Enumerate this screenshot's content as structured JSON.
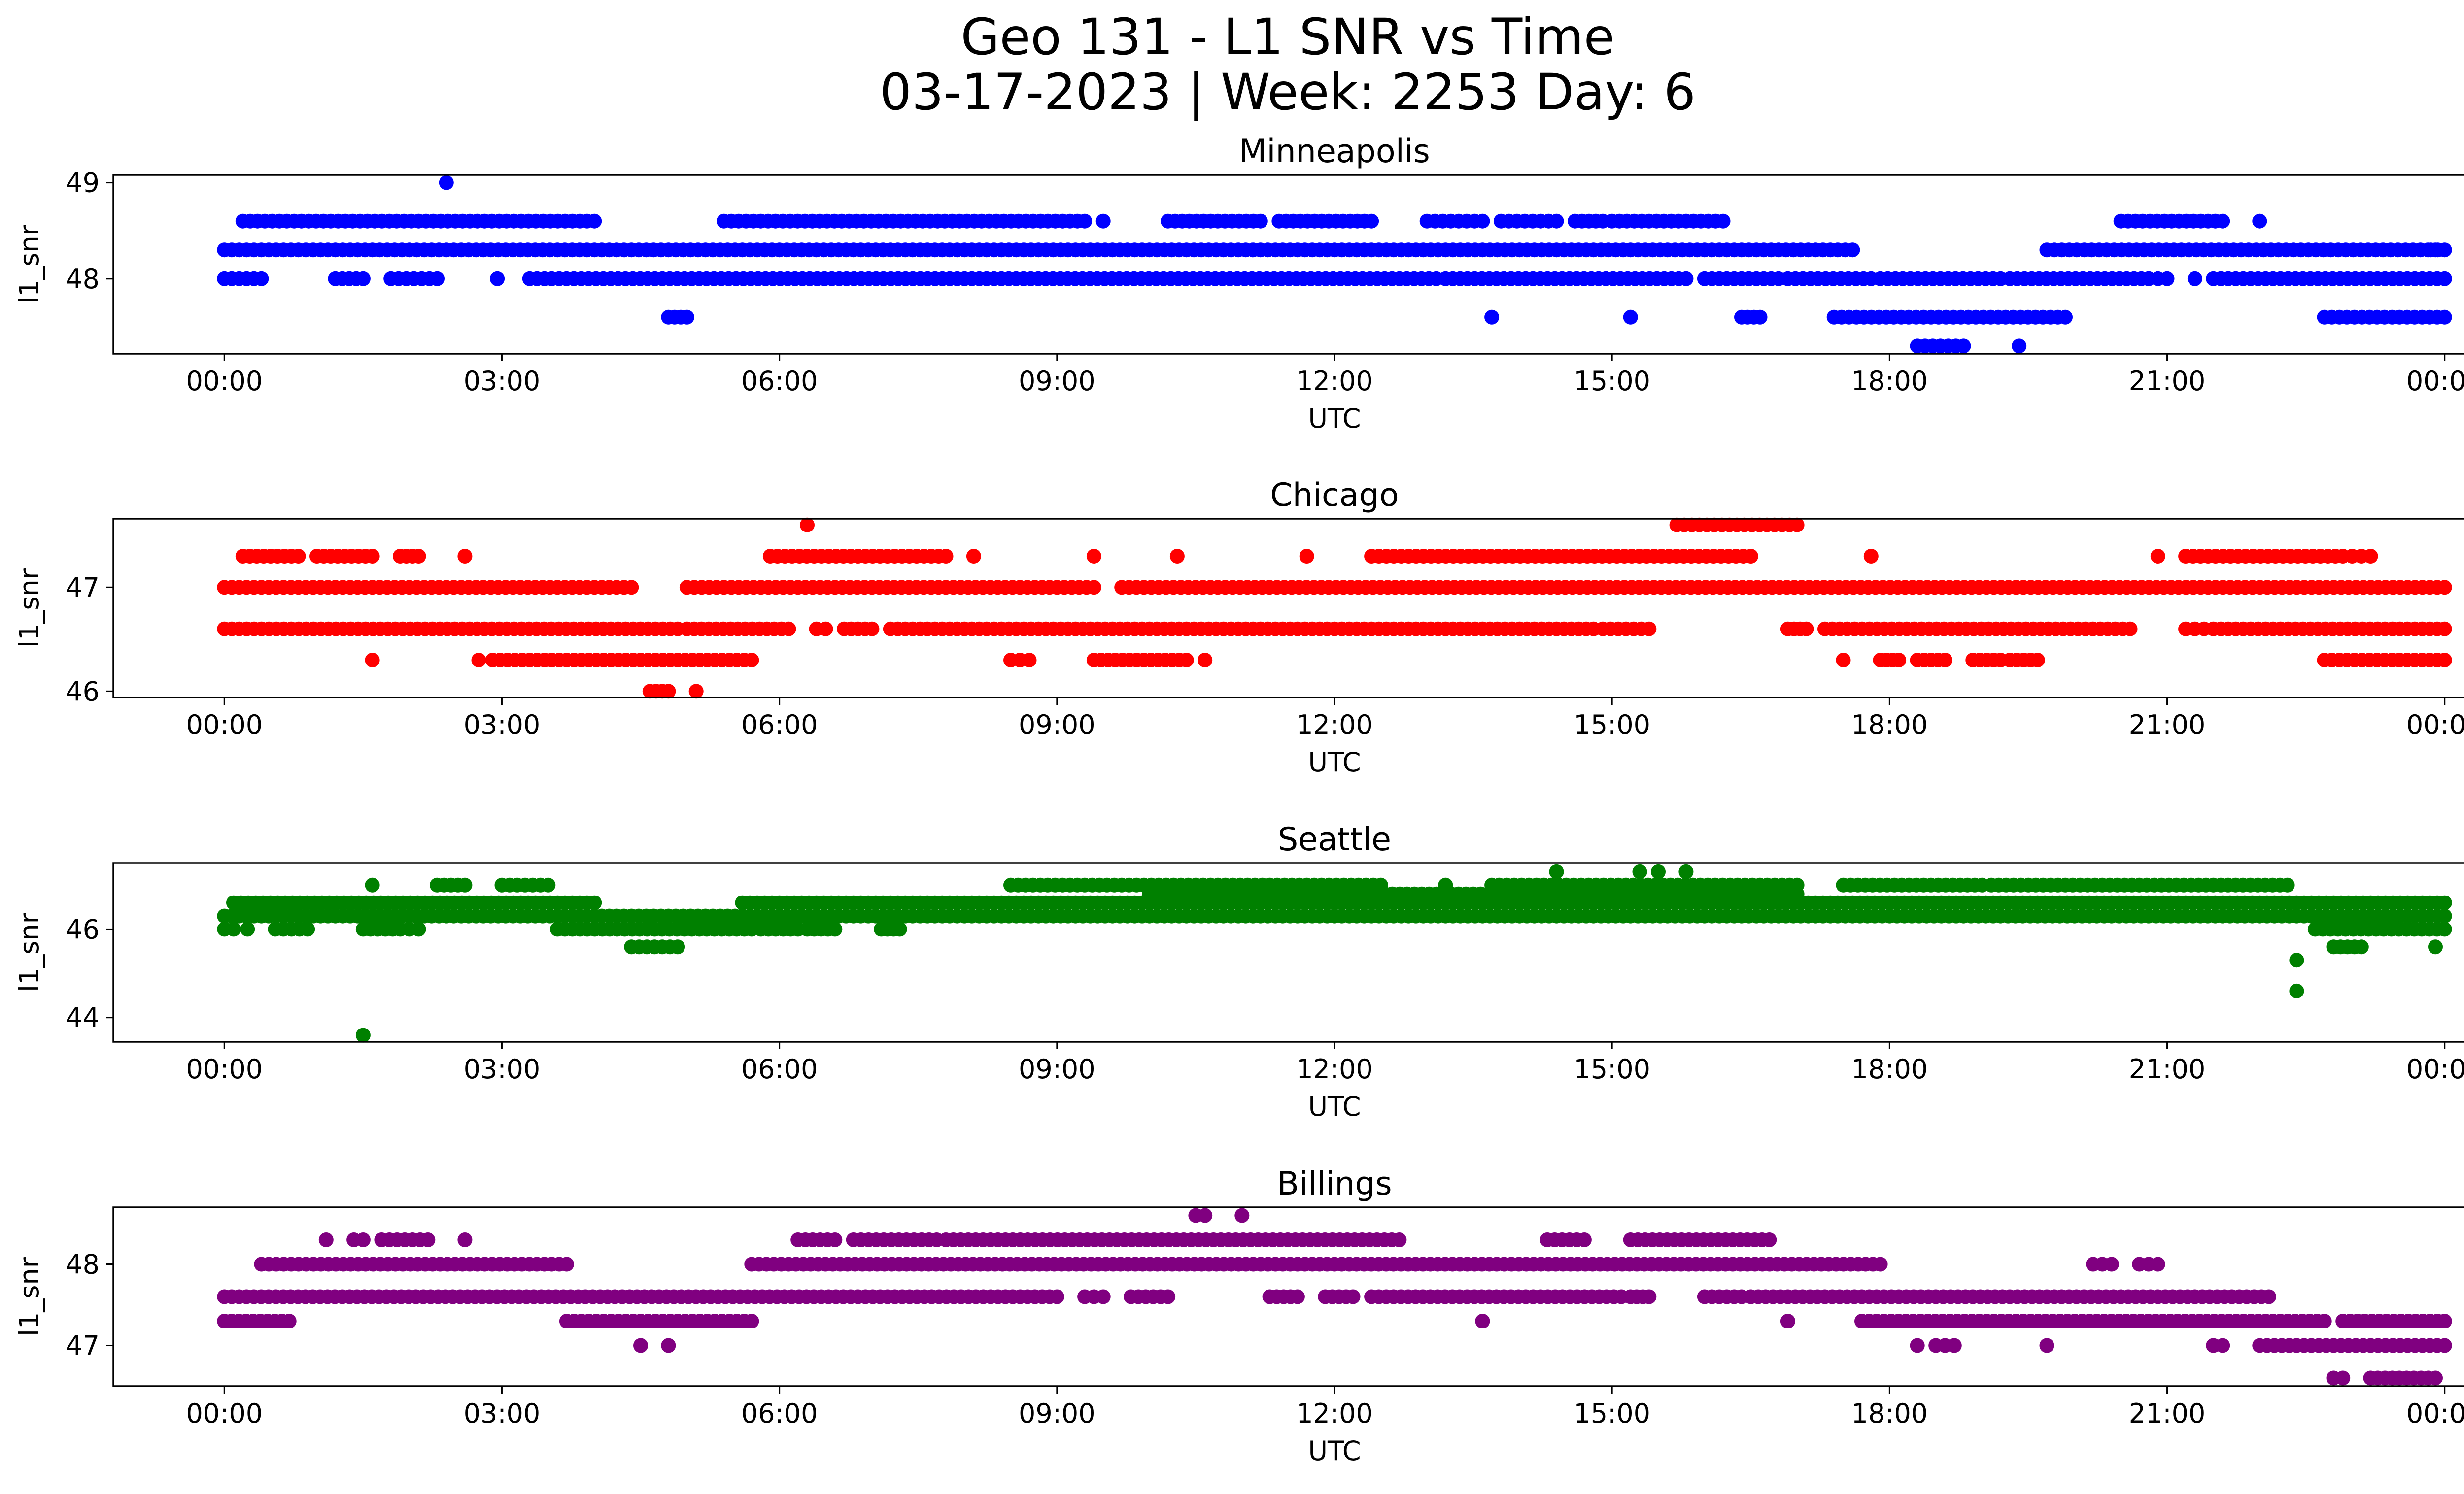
{
  "figure": {
    "title_line1": "Geo 131 - L1 SNR vs Time",
    "title_line2": "03-17-2023 | Week: 2253 Day: 6"
  },
  "chart_data": [
    {
      "type": "scatter",
      "title": "Minneapolis",
      "xlabel": "UTC",
      "ylabel": "l1_snr",
      "color": "#0000ff",
      "xticks": [
        "00:00",
        "03:00",
        "06:00",
        "09:00",
        "12:00",
        "15:00",
        "18:00",
        "21:00",
        "00:00"
      ],
      "yticks": [
        48,
        49
      ],
      "xlim": [
        -1.2,
        25.2
      ],
      "ylim": [
        47.22,
        49.08
      ],
      "levels": [
        {
          "y": 48.3,
          "runs": [
            [
              0,
              17.6
            ],
            [
              19.7,
              23.9
            ],
            [
              23.85,
              24.0
            ]
          ]
        },
        {
          "y": 48.0,
          "runs": [
            [
              0,
              0.4
            ],
            [
              1.2,
              1.5
            ],
            [
              1.8,
              2.3
            ],
            [
              2.95,
              2.95
            ],
            [
              3.3,
              13.1
            ],
            [
              13.2,
              15.8
            ],
            [
              16.0,
              16.8
            ],
            [
              16.9,
              17.8
            ],
            [
              17.9,
              19.2
            ],
            [
              19.3,
              20.8
            ],
            [
              20.8,
              21.0
            ],
            [
              21.3,
              21.3
            ],
            [
              21.5,
              24.0
            ]
          ]
        },
        {
          "y": 48.6,
          "runs": [
            [
              0.2,
              4.0
            ],
            [
              5.4,
              9.3
            ],
            [
              9.5,
              9.5
            ],
            [
              10.2,
              11.2
            ],
            [
              11.4,
              12.4
            ],
            [
              13.0,
              13.6
            ],
            [
              13.8,
              14.4
            ],
            [
              14.6,
              14.9
            ],
            [
              15.0,
              16.2
            ],
            [
              20.5,
              21.6
            ],
            [
              22.0,
              22.0
            ]
          ]
        },
        {
          "y": 47.6,
          "runs": [
            [
              4.8,
              5.0
            ],
            [
              13.7,
              13.7
            ],
            [
              15.2,
              15.2
            ],
            [
              16.4,
              16.6
            ],
            [
              17.4,
              19.9
            ],
            [
              22.7,
              24.0
            ]
          ]
        },
        {
          "y": 47.3,
          "runs": [
            [
              18.3,
              18.8
            ],
            [
              19.4,
              19.4
            ]
          ]
        }
      ],
      "outliers": [
        {
          "x": 2.4,
          "y": 49.0
        }
      ]
    },
    {
      "type": "scatter",
      "title": "Chicago",
      "xlabel": "UTC",
      "ylabel": "l1_snr",
      "color": "#ff0000",
      "xticks": [
        "00:00",
        "03:00",
        "06:00",
        "09:00",
        "12:00",
        "15:00",
        "18:00",
        "21:00",
        "00:00"
      ],
      "yticks": [
        46,
        47
      ],
      "xlim": [
        -1.2,
        25.2
      ],
      "ylim": [
        45.94,
        47.66
      ],
      "levels": [
        {
          "y": 47.0,
          "runs": [
            [
              0,
              4.4
            ],
            [
              5.0,
              9.4
            ],
            [
              9.7,
              24.0
            ]
          ]
        },
        {
          "y": 46.6,
          "runs": [
            [
              0,
              4.9
            ],
            [
              5.0,
              6.1
            ],
            [
              6.4,
              6.5
            ],
            [
              6.7,
              7.0
            ],
            [
              7.2,
              14.8
            ],
            [
              14.9,
              15.4
            ],
            [
              16.9,
              17.1
            ],
            [
              17.3,
              20.6
            ],
            [
              21.2,
              21.4
            ],
            [
              21.5,
              24.0
            ]
          ]
        },
        {
          "y": 47.3,
          "runs": [
            [
              0.2,
              0.8
            ],
            [
              1.0,
              1.6
            ],
            [
              1.9,
              2.1
            ],
            [
              2.6,
              2.6
            ],
            [
              5.9,
              7.8
            ],
            [
              8.1,
              8.1
            ],
            [
              9.4,
              9.4
            ],
            [
              10.3,
              10.3
            ],
            [
              11.7,
              11.7
            ],
            [
              12.4,
              16.5
            ],
            [
              17.8,
              17.8
            ],
            [
              20.9,
              20.9
            ],
            [
              21.2,
              22.9
            ],
            [
              23.0,
              23.2
            ]
          ]
        },
        {
          "y": 47.6,
          "runs": [
            [
              6.3,
              6.3
            ],
            [
              15.7,
              17.0
            ]
          ]
        },
        {
          "y": 46.3,
          "runs": [
            [
              1.6,
              1.6
            ],
            [
              2.75,
              2.75
            ],
            [
              2.9,
              5.7
            ],
            [
              8.5,
              8.7
            ],
            [
              9.4,
              10.4
            ],
            [
              10.6,
              10.6
            ],
            [
              17.5,
              17.5
            ],
            [
              17.9,
              18.1
            ],
            [
              18.3,
              18.6
            ],
            [
              18.9,
              19.2
            ],
            [
              19.3,
              19.6
            ],
            [
              22.7,
              24.0
            ]
          ]
        },
        {
          "y": 46.0,
          "runs": [
            [
              4.6,
              4.8
            ],
            [
              5.1,
              5.1
            ]
          ]
        }
      ],
      "outliers": []
    },
    {
      "type": "scatter",
      "title": "Seattle",
      "xlabel": "UTC",
      "ylabel": "l1_snr",
      "color": "#008000",
      "xticks": [
        "00:00",
        "03:00",
        "06:00",
        "09:00",
        "12:00",
        "15:00",
        "18:00",
        "21:00",
        "00:00"
      ],
      "yticks": [
        44,
        46
      ],
      "xlim": [
        -1.2,
        25.2
      ],
      "ylim": [
        43.45,
        47.5
      ],
      "levels": [
        {
          "y": 46.3,
          "runs": [
            [
              0,
              24.0
            ]
          ]
        },
        {
          "y": 46.6,
          "runs": [
            [
              0.1,
              4.0
            ],
            [
              5.6,
              24.0
            ]
          ]
        },
        {
          "y": 46.0,
          "runs": [
            [
              0,
              0.1
            ],
            [
              0.25,
              0.25
            ],
            [
              0.55,
              0.9
            ],
            [
              1.5,
              1.9
            ],
            [
              2.0,
              2.1
            ],
            [
              3.6,
              5.7
            ],
            [
              5.8,
              6.2
            ],
            [
              6.3,
              6.6
            ],
            [
              7.1,
              7.3
            ],
            [
              22.6,
              24.0
            ]
          ]
        },
        {
          "y": 47.0,
          "runs": [
            [
              1.6,
              1.6
            ],
            [
              2.3,
              2.6
            ],
            [
              3.0,
              3.5
            ],
            [
              8.5,
              12.5
            ],
            [
              13.2,
              13.2
            ],
            [
              13.7,
              17.0
            ],
            [
              17.5,
              19.0
            ],
            [
              19.1,
              22.3
            ]
          ]
        },
        {
          "y": 46.8,
          "runs": [
            [
              10.0,
              17.0
            ]
          ]
        },
        {
          "y": 45.6,
          "runs": [
            [
              4.4,
              4.9
            ],
            [
              22.8,
              23.1
            ],
            [
              23.9,
              23.9
            ]
          ]
        }
      ],
      "outliers": [
        {
          "x": 1.5,
          "y": 43.6
        },
        {
          "x": 22.4,
          "y": 45.3
        },
        {
          "x": 22.4,
          "y": 44.6
        },
        {
          "x": 14.4,
          "y": 47.3
        },
        {
          "x": 15.3,
          "y": 47.3
        },
        {
          "x": 15.5,
          "y": 47.3
        },
        {
          "x": 15.8,
          "y": 47.3
        }
      ]
    },
    {
      "type": "scatter",
      "title": "Billings",
      "xlabel": "UTC",
      "ylabel": "l1_snr",
      "color": "#800080",
      "xticks": [
        "00:00",
        "03:00",
        "06:00",
        "09:00",
        "12:00",
        "15:00",
        "18:00",
        "21:00",
        "00:00"
      ],
      "yticks": [
        47,
        48
      ],
      "xlim": [
        -1.2,
        25.2
      ],
      "ylim": [
        46.5,
        48.7
      ],
      "levels": [
        {
          "y": 47.6,
          "runs": [
            [
              0,
              9.0
            ],
            [
              9.3,
              9.5
            ],
            [
              9.8,
              10.2
            ],
            [
              11.3,
              11.6
            ],
            [
              11.9,
              12.2
            ],
            [
              12.4,
              15.1
            ],
            [
              15.2,
              15.4
            ],
            [
              16.0,
              16.4
            ],
            [
              16.5,
              22.1
            ]
          ]
        },
        {
          "y": 48.0,
          "runs": [
            [
              0.4,
              3.7
            ],
            [
              5.7,
              17.9
            ],
            [
              20.2,
              20.4
            ],
            [
              20.7,
              20.9
            ]
          ]
        },
        {
          "y": 47.3,
          "runs": [
            [
              0,
              0.7
            ],
            [
              3.7,
              5.7
            ],
            [
              13.6,
              13.6
            ],
            [
              16.9,
              16.9
            ],
            [
              17.7,
              22.7
            ],
            [
              22.9,
              24.0
            ]
          ]
        },
        {
          "y": 48.3,
          "runs": [
            [
              1.1,
              1.1
            ],
            [
              1.4,
              1.5
            ],
            [
              1.7,
              2.2
            ],
            [
              2.6,
              2.6
            ],
            [
              6.2,
              6.6
            ],
            [
              6.8,
              7.7
            ],
            [
              7.8,
              12.7
            ],
            [
              14.3,
              14.7
            ],
            [
              15.2,
              16.7
            ]
          ]
        },
        {
          "y": 47.0,
          "runs": [
            [
              4.5,
              4.5
            ],
            [
              4.8,
              4.8
            ],
            [
              18.3,
              18.3
            ],
            [
              18.5,
              18.7
            ],
            [
              19.7,
              19.7
            ],
            [
              21.5,
              21.6
            ],
            [
              22.0,
              24.0
            ]
          ]
        },
        {
          "y": 46.6,
          "runs": [
            [
              22.8,
              22.9
            ],
            [
              23.2,
              23.9
            ]
          ]
        },
        {
          "y": 48.6,
          "runs": [
            [
              10.5,
              10.6
            ],
            [
              11.0,
              11.0
            ]
          ]
        }
      ],
      "outliers": []
    }
  ]
}
